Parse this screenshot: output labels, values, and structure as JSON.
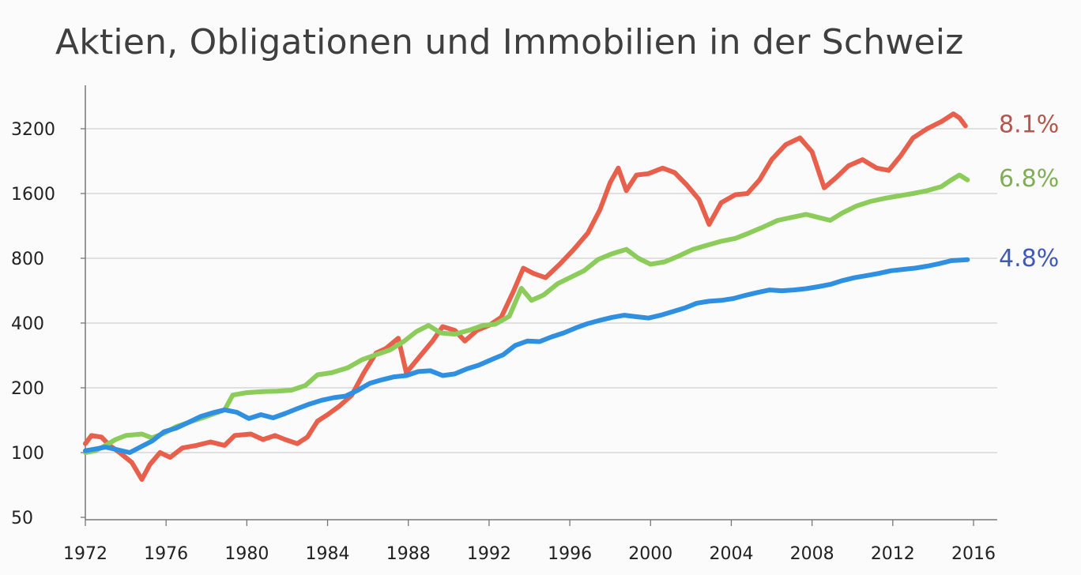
{
  "chart_data": {
    "type": "line",
    "title": "Aktien, Obligationen und Immobilien in der Schweiz",
    "xlabel": "",
    "ylabel": "",
    "y_scale": "log",
    "xlim": [
      1972,
      2016
    ],
    "ylim": [
      50,
      4600
    ],
    "grid": true,
    "x_ticks": [
      1972,
      1976,
      1980,
      1984,
      1988,
      1992,
      1996,
      2000,
      2004,
      2008,
      2012,
      2016
    ],
    "y_ticks": [
      50,
      100,
      200,
      400,
      800,
      1600,
      3200
    ],
    "series": [
      {
        "end_label": "8.1%",
        "color": "#e8604c",
        "label_color": "#b5564c",
        "points": [
          [
            1972.0,
            110
          ],
          [
            1972.3,
            120
          ],
          [
            1972.8,
            118
          ],
          [
            1973.2,
            108
          ],
          [
            1973.7,
            100
          ],
          [
            1974.3,
            90
          ],
          [
            1974.8,
            75
          ],
          [
            1975.2,
            88
          ],
          [
            1975.7,
            100
          ],
          [
            1976.2,
            95
          ],
          [
            1976.8,
            105
          ],
          [
            1977.5,
            108
          ],
          [
            1978.2,
            112
          ],
          [
            1978.9,
            108
          ],
          [
            1979.4,
            120
          ],
          [
            1980.2,
            122
          ],
          [
            1980.8,
            115
          ],
          [
            1981.4,
            120
          ],
          [
            1981.9,
            115
          ],
          [
            1982.5,
            110
          ],
          [
            1983.0,
            118
          ],
          [
            1983.5,
            140
          ],
          [
            1984.0,
            150
          ],
          [
            1984.6,
            165
          ],
          [
            1985.2,
            185
          ],
          [
            1985.8,
            235
          ],
          [
            1986.4,
            290
          ],
          [
            1986.9,
            305
          ],
          [
            1987.5,
            340
          ],
          [
            1987.9,
            235
          ],
          [
            1988.5,
            275
          ],
          [
            1989.2,
            330
          ],
          [
            1989.7,
            385
          ],
          [
            1990.3,
            370
          ],
          [
            1990.8,
            330
          ],
          [
            1991.4,
            370
          ],
          [
            1992.0,
            390
          ],
          [
            1992.6,
            425
          ],
          [
            1993.2,
            560
          ],
          [
            1993.7,
            720
          ],
          [
            1994.2,
            680
          ],
          [
            1994.8,
            650
          ],
          [
            1995.5,
            750
          ],
          [
            1996.2,
            880
          ],
          [
            1996.9,
            1050
          ],
          [
            1997.5,
            1350
          ],
          [
            1998.0,
            1800
          ],
          [
            1998.4,
            2100
          ],
          [
            1998.8,
            1650
          ],
          [
            1999.3,
            1950
          ],
          [
            1999.9,
            1980
          ],
          [
            2000.6,
            2100
          ],
          [
            2001.2,
            2000
          ],
          [
            2001.8,
            1750
          ],
          [
            2002.4,
            1500
          ],
          [
            2002.9,
            1150
          ],
          [
            2003.5,
            1450
          ],
          [
            2004.2,
            1580
          ],
          [
            2004.8,
            1600
          ],
          [
            2005.4,
            1850
          ],
          [
            2006.0,
            2300
          ],
          [
            2006.7,
            2700
          ],
          [
            2007.4,
            2900
          ],
          [
            2008.0,
            2500
          ],
          [
            2008.6,
            1700
          ],
          [
            2009.2,
            1900
          ],
          [
            2009.8,
            2150
          ],
          [
            2010.5,
            2300
          ],
          [
            2011.2,
            2100
          ],
          [
            2011.8,
            2050
          ],
          [
            2012.4,
            2400
          ],
          [
            2013.0,
            2900
          ],
          [
            2013.7,
            3200
          ],
          [
            2014.4,
            3450
          ],
          [
            2015.0,
            3750
          ],
          [
            2015.3,
            3600
          ],
          [
            2015.6,
            3300
          ]
        ]
      },
      {
        "end_label": "6.8%",
        "color": "#8ccc5a",
        "label_color": "#7fae54",
        "points": [
          [
            1972.0,
            100
          ],
          [
            1972.5,
            102
          ],
          [
            1973.0,
            108
          ],
          [
            1973.5,
            115
          ],
          [
            1974.0,
            120
          ],
          [
            1974.8,
            122
          ],
          [
            1975.3,
            117
          ],
          [
            1975.9,
            123
          ],
          [
            1976.5,
            132
          ],
          [
            1977.1,
            138
          ],
          [
            1977.8,
            145
          ],
          [
            1978.4,
            152
          ],
          [
            1978.9,
            158
          ],
          [
            1979.3,
            185
          ],
          [
            1980.0,
            190
          ],
          [
            1980.8,
            192
          ],
          [
            1981.5,
            193
          ],
          [
            1982.2,
            195
          ],
          [
            1982.9,
            205
          ],
          [
            1983.5,
            230
          ],
          [
            1984.2,
            235
          ],
          [
            1985.0,
            248
          ],
          [
            1985.7,
            270
          ],
          [
            1986.4,
            285
          ],
          [
            1987.1,
            300
          ],
          [
            1987.8,
            330
          ],
          [
            1988.4,
            365
          ],
          [
            1989.0,
            390
          ],
          [
            1989.6,
            360
          ],
          [
            1990.3,
            355
          ],
          [
            1991.0,
            370
          ],
          [
            1991.7,
            390
          ],
          [
            1992.3,
            395
          ],
          [
            1993.0,
            430
          ],
          [
            1993.6,
            580
          ],
          [
            1994.1,
            510
          ],
          [
            1994.7,
            540
          ],
          [
            1995.4,
            610
          ],
          [
            1996.0,
            650
          ],
          [
            1996.7,
            700
          ],
          [
            1997.4,
            790
          ],
          [
            1998.1,
            840
          ],
          [
            1998.8,
            880
          ],
          [
            1999.4,
            800
          ],
          [
            2000.0,
            750
          ],
          [
            2000.7,
            770
          ],
          [
            2001.4,
            820
          ],
          [
            2002.1,
            880
          ],
          [
            2002.8,
            920
          ],
          [
            2003.5,
            960
          ],
          [
            2004.2,
            990
          ],
          [
            2004.9,
            1050
          ],
          [
            2005.6,
            1120
          ],
          [
            2006.3,
            1200
          ],
          [
            2007.0,
            1240
          ],
          [
            2007.7,
            1280
          ],
          [
            2008.3,
            1240
          ],
          [
            2008.9,
            1200
          ],
          [
            2009.5,
            1300
          ],
          [
            2010.2,
            1400
          ],
          [
            2010.9,
            1470
          ],
          [
            2011.6,
            1520
          ],
          [
            2012.3,
            1560
          ],
          [
            2013.0,
            1600
          ],
          [
            2013.7,
            1650
          ],
          [
            2014.4,
            1720
          ],
          [
            2014.9,
            1850
          ],
          [
            2015.3,
            1950
          ],
          [
            2015.7,
            1850
          ]
        ]
      },
      {
        "end_label": "4.8%",
        "color": "#2f8fe0",
        "label_color": "#3f59b9",
        "points": [
          [
            1972.0,
            102
          ],
          [
            1972.5,
            104
          ],
          [
            1973.0,
            106
          ],
          [
            1973.6,
            103
          ],
          [
            1974.2,
            100
          ],
          [
            1974.8,
            107
          ],
          [
            1975.3,
            113
          ],
          [
            1975.9,
            125
          ],
          [
            1976.5,
            130
          ],
          [
            1977.1,
            138
          ],
          [
            1977.7,
            147
          ],
          [
            1978.3,
            153
          ],
          [
            1978.9,
            158
          ],
          [
            1979.5,
            154
          ],
          [
            1980.1,
            144
          ],
          [
            1980.7,
            150
          ],
          [
            1981.3,
            145
          ],
          [
            1981.9,
            152
          ],
          [
            1982.5,
            160
          ],
          [
            1983.1,
            168
          ],
          [
            1983.7,
            175
          ],
          [
            1984.3,
            180
          ],
          [
            1984.9,
            183
          ],
          [
            1985.5,
            195
          ],
          [
            1986.1,
            210
          ],
          [
            1986.7,
            218
          ],
          [
            1987.3,
            225
          ],
          [
            1987.9,
            228
          ],
          [
            1988.5,
            238
          ],
          [
            1989.1,
            240
          ],
          [
            1989.7,
            228
          ],
          [
            1990.3,
            232
          ],
          [
            1990.9,
            245
          ],
          [
            1991.5,
            255
          ],
          [
            1992.1,
            270
          ],
          [
            1992.7,
            285
          ],
          [
            1993.3,
            315
          ],
          [
            1993.9,
            330
          ],
          [
            1994.5,
            328
          ],
          [
            1995.1,
            345
          ],
          [
            1995.7,
            360
          ],
          [
            1996.3,
            380
          ],
          [
            1996.9,
            398
          ],
          [
            1997.5,
            412
          ],
          [
            1998.1,
            425
          ],
          [
            1998.7,
            435
          ],
          [
            1999.3,
            428
          ],
          [
            1999.9,
            422
          ],
          [
            2000.5,
            435
          ],
          [
            2001.1,
            452
          ],
          [
            2001.7,
            470
          ],
          [
            2002.3,
            495
          ],
          [
            2002.9,
            505
          ],
          [
            2003.5,
            510
          ],
          [
            2004.1,
            520
          ],
          [
            2004.7,
            538
          ],
          [
            2005.3,
            555
          ],
          [
            2005.9,
            570
          ],
          [
            2006.5,
            565
          ],
          [
            2007.1,
            570
          ],
          [
            2007.7,
            578
          ],
          [
            2008.3,
            590
          ],
          [
            2008.9,
            605
          ],
          [
            2009.5,
            630
          ],
          [
            2010.1,
            650
          ],
          [
            2010.7,
            665
          ],
          [
            2011.3,
            680
          ],
          [
            2011.9,
            700
          ],
          [
            2012.5,
            710
          ],
          [
            2013.1,
            720
          ],
          [
            2013.7,
            735
          ],
          [
            2014.3,
            755
          ],
          [
            2014.9,
            780
          ],
          [
            2015.4,
            785
          ],
          [
            2015.7,
            788
          ]
        ]
      }
    ]
  }
}
